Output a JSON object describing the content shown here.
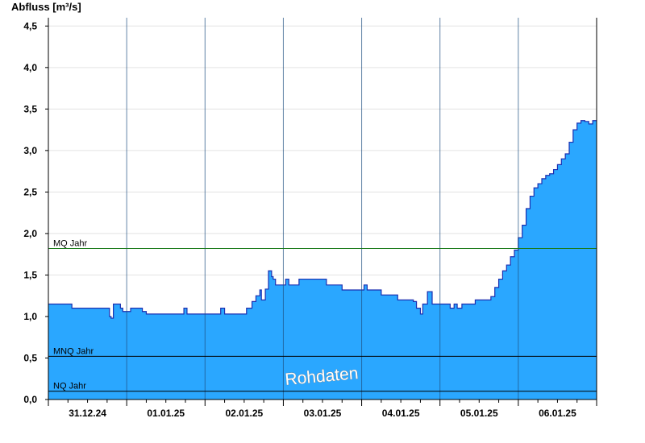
{
  "chart_data": {
    "type": "area",
    "ylabel": "Abfluss [m³/s]",
    "ylim": [
      0,
      4.6
    ],
    "yticks": [
      "0,0",
      "0,5",
      "1,0",
      "1,5",
      "2,0",
      "2,5",
      "3,0",
      "3,5",
      "4,0",
      "4,5"
    ],
    "xlim": [
      0,
      7
    ],
    "xtick_labels": [
      "31.12.24",
      "01.01.25",
      "02.01.25",
      "03.01.25",
      "04.01.25",
      "05.01.25",
      "06.01.25"
    ],
    "grid": true,
    "fill_color": "#2aa7ff",
    "line_color": "#1b2fb0",
    "series": [
      {
        "x": [
          0,
          0.28,
          0.3,
          0.73,
          0.78,
          0.8,
          0.83,
          0.88,
          0.92,
          0.95,
          1.0,
          1.05,
          1.08,
          1.2,
          1.25,
          1.7,
          1.73,
          1.77,
          2.17,
          2.2,
          2.25,
          2.5,
          2.53,
          2.6,
          2.65,
          2.7,
          2.72,
          2.77,
          2.81,
          2.85,
          2.87,
          2.9,
          3.0,
          3.03,
          3.07,
          3.15,
          3.2,
          3.5,
          3.55,
          3.7,
          3.75,
          4.0,
          4.03,
          4.07,
          4.2,
          4.25,
          4.43,
          4.46,
          4.6,
          4.66,
          4.7,
          4.75,
          4.78,
          4.84,
          4.9,
          5.1,
          5.13,
          5.18,
          5.22,
          5.28,
          5.4,
          5.45,
          5.6,
          5.65,
          5.7,
          5.75,
          5.8,
          5.85,
          5.9,
          5.95,
          6.0,
          6.05,
          6.1,
          6.15,
          6.2,
          6.25,
          6.3,
          6.35,
          6.4,
          6.45,
          6.5,
          6.55,
          6.6,
          6.65,
          6.7,
          6.75,
          6.8,
          6.85,
          6.9,
          6.95,
          7.0
        ],
        "y": [
          1.15,
          1.15,
          1.1,
          1.1,
          1.0,
          0.98,
          1.15,
          1.15,
          1.1,
          1.06,
          1.06,
          1.1,
          1.1,
          1.06,
          1.03,
          1.03,
          1.1,
          1.03,
          1.03,
          1.1,
          1.03,
          1.03,
          1.1,
          1.18,
          1.25,
          1.32,
          1.2,
          1.33,
          1.55,
          1.48,
          1.45,
          1.38,
          1.38,
          1.45,
          1.38,
          1.38,
          1.45,
          1.45,
          1.38,
          1.38,
          1.32,
          1.32,
          1.38,
          1.32,
          1.32,
          1.26,
          1.26,
          1.2,
          1.2,
          1.18,
          1.1,
          1.03,
          1.15,
          1.3,
          1.15,
          1.15,
          1.1,
          1.15,
          1.1,
          1.15,
          1.15,
          1.2,
          1.2,
          1.24,
          1.35,
          1.45,
          1.55,
          1.62,
          1.72,
          1.8,
          1.95,
          2.1,
          2.3,
          2.45,
          2.55,
          2.6,
          2.66,
          2.7,
          2.72,
          2.77,
          2.83,
          2.9,
          2.96,
          3.1,
          3.25,
          3.33,
          3.36,
          3.35,
          3.32,
          3.36,
          3.36
        ]
      }
    ],
    "reference_lines": [
      {
        "name": "MQ Jahr",
        "value": 1.82,
        "color": "#1a7a1a"
      },
      {
        "name": "MNQ Jahr",
        "value": 0.52,
        "color": "#000000"
      },
      {
        "name": "NQ Jahr",
        "value": 0.1,
        "color": "#000000"
      }
    ],
    "annotation": "Rohdaten"
  }
}
